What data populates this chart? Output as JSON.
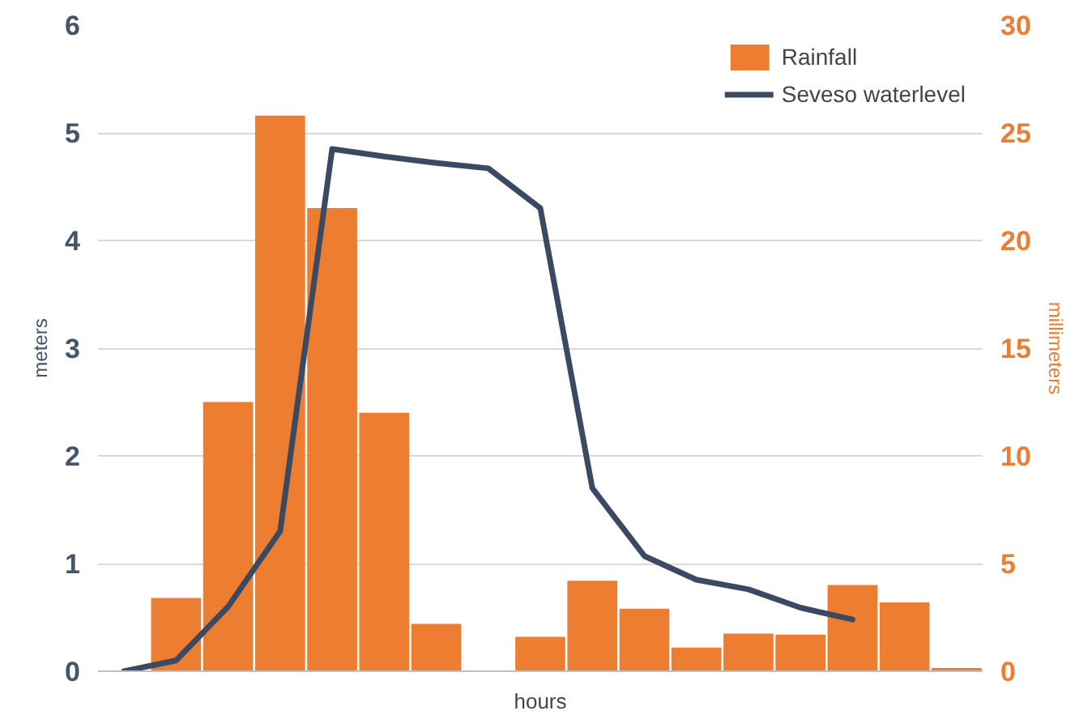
{
  "chart_data": {
    "type": "bar",
    "xlabel": "hours",
    "ylabel": "meters",
    "y2label": "millimeters",
    "categories": [
      null,
      null,
      null,
      null,
      null,
      null,
      null,
      null,
      null,
      null,
      null,
      null,
      null,
      null,
      null,
      null,
      null
    ],
    "series": [
      {
        "name": "Rainfall",
        "axis": "y2",
        "color": "#ed7d31",
        "values": [
          0,
          3.4,
          12.5,
          25.8,
          21.5,
          12,
          2.2,
          0,
          1.6,
          4.2,
          2.9,
          1.1,
          1.75,
          1.7,
          4.0,
          3.2,
          0.15
        ]
      },
      {
        "name": "Seveso waterlevel",
        "type": "line",
        "color": "#3b4a63",
        "values": [
          0,
          0.1,
          0.6,
          1.3,
          4.85,
          4.78,
          4.72,
          4.67,
          4.3,
          1.7,
          1.07,
          0.85,
          0.76,
          0.59,
          0.48,
          null,
          null
        ]
      }
    ],
    "ylim": [
      0,
      6
    ],
    "yticks": [
      0,
      1,
      2,
      3,
      4,
      5,
      6
    ],
    "y2lim": [
      0,
      30
    ],
    "y2ticks": [
      0,
      5,
      10,
      15,
      20,
      25,
      30
    ],
    "grid": "y",
    "legend": "top right",
    "line_style": "solid",
    "marker": "none"
  }
}
